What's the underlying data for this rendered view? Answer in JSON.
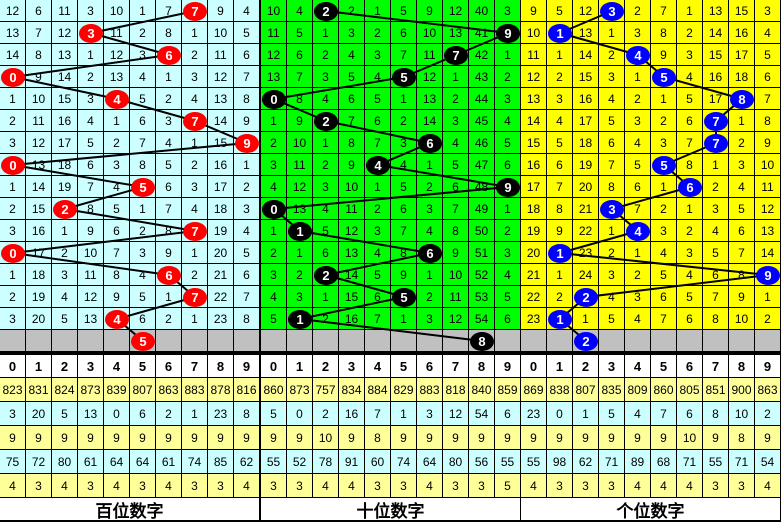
{
  "colors": {
    "hundreds_bg": "#ccffff",
    "tens_bg": "#00ff00",
    "units_bg": "#ffff00",
    "missing_row_bg": "#c0c0c0",
    "stat_yellow": "#ffff99",
    "stat_cyan": "#ccffff",
    "hundreds_ball": "#ff0000",
    "tens_ball": "#000000",
    "units_ball": "#0000ff"
  },
  "digits": [
    "0",
    "1",
    "2",
    "3",
    "4",
    "5",
    "6",
    "7",
    "8",
    "9"
  ],
  "panels": [
    {
      "label": "百位数字",
      "ball": "red-ball",
      "rows": [
        [
          12,
          6,
          11,
          3,
          10,
          1,
          7,
          7,
          9,
          4
        ],
        [
          13,
          7,
          12,
          3,
          11,
          2,
          8,
          1,
          10,
          5
        ],
        [
          14,
          8,
          13,
          1,
          12,
          3,
          6,
          2,
          11,
          6
        ],
        [
          0,
          9,
          14,
          2,
          13,
          4,
          1,
          3,
          12,
          7
        ],
        [
          1,
          10,
          15,
          3,
          4,
          5,
          2,
          4,
          13,
          8
        ],
        [
          2,
          11,
          16,
          4,
          1,
          6,
          3,
          7,
          14,
          9
        ],
        [
          3,
          12,
          17,
          5,
          2,
          7,
          4,
          1,
          15,
          9
        ],
        [
          0,
          13,
          18,
          6,
          3,
          8,
          5,
          2,
          16,
          1
        ],
        [
          1,
          14,
          19,
          7,
          4,
          5,
          6,
          3,
          17,
          2
        ],
        [
          2,
          15,
          2,
          8,
          5,
          1,
          7,
          4,
          18,
          3
        ],
        [
          3,
          16,
          1,
          9,
          6,
          2,
          8,
          7,
          19,
          4
        ],
        [
          0,
          17,
          2,
          10,
          7,
          3,
          9,
          1,
          20,
          5
        ],
        [
          1,
          18,
          3,
          11,
          8,
          4,
          6,
          2,
          21,
          6
        ],
        [
          2,
          19,
          4,
          12,
          9,
          5,
          1,
          7,
          22,
          7
        ],
        [
          3,
          20,
          5,
          13,
          4,
          6,
          2,
          1,
          23,
          8
        ]
      ],
      "hits": [
        7,
        3,
        6,
        0,
        4,
        7,
        9,
        0,
        5,
        2,
        7,
        0,
        6,
        7,
        4
      ],
      "next_hit": 5,
      "stats": [
        [
          823,
          831,
          824,
          873,
          839,
          807,
          863,
          883,
          878,
          816
        ],
        [
          3,
          20,
          5,
          13,
          0,
          6,
          2,
          1,
          23,
          8
        ],
        [
          9,
          9,
          9,
          9,
          9,
          9,
          9,
          9,
          9,
          9
        ],
        [
          75,
          72,
          80,
          61,
          64,
          64,
          61,
          74,
          85,
          62
        ],
        [
          4,
          3,
          4,
          3,
          4,
          3,
          4,
          3,
          3,
          4
        ]
      ]
    },
    {
      "label": "十位数字",
      "ball": "black-ball",
      "rows": [
        [
          10,
          4,
          2,
          2,
          1,
          5,
          9,
          12,
          40,
          3
        ],
        [
          11,
          5,
          1,
          3,
          2,
          6,
          10,
          13,
          41,
          9
        ],
        [
          12,
          6,
          2,
          4,
          3,
          7,
          11,
          7,
          42,
          1
        ],
        [
          13,
          7,
          3,
          5,
          4,
          5,
          12,
          1,
          43,
          2
        ],
        [
          0,
          8,
          4,
          6,
          5,
          1,
          13,
          2,
          44,
          3
        ],
        [
          1,
          9,
          2,
          7,
          6,
          2,
          14,
          3,
          45,
          4
        ],
        [
          2,
          10,
          1,
          8,
          7,
          3,
          6,
          4,
          46,
          5
        ],
        [
          3,
          11,
          2,
          9,
          4,
          4,
          1,
          5,
          47,
          6
        ],
        [
          4,
          12,
          3,
          10,
          1,
          5,
          2,
          6,
          48,
          9
        ],
        [
          0,
          13,
          4,
          11,
          2,
          6,
          3,
          7,
          49,
          1
        ],
        [
          1,
          1,
          5,
          12,
          3,
          7,
          4,
          8,
          50,
          2
        ],
        [
          2,
          1,
          6,
          13,
          4,
          8,
          6,
          9,
          51,
          3
        ],
        [
          3,
          2,
          2,
          14,
          5,
          9,
          1,
          10,
          52,
          4
        ],
        [
          4,
          3,
          1,
          15,
          6,
          5,
          2,
          11,
          53,
          5
        ],
        [
          5,
          1,
          2,
          16,
          7,
          1,
          3,
          12,
          54,
          6
        ]
      ],
      "hits": [
        2,
        9,
        7,
        5,
        0,
        2,
        6,
        4,
        9,
        0,
        1,
        6,
        2,
        5,
        1
      ],
      "next_hit": 8,
      "stats": [
        [
          860,
          873,
          757,
          834,
          884,
          829,
          883,
          818,
          840,
          859
        ],
        [
          5,
          0,
          2,
          16,
          7,
          1,
          3,
          12,
          54,
          6
        ],
        [
          9,
          9,
          10,
          9,
          8,
          9,
          9,
          9,
          9,
          9
        ],
        [
          55,
          52,
          78,
          91,
          60,
          74,
          64,
          80,
          56,
          55
        ],
        [
          3,
          3,
          4,
          4,
          3,
          3,
          4,
          3,
          3,
          5
        ]
      ]
    },
    {
      "label": "个位数字",
      "ball": "blue-ball",
      "rows": [
        [
          9,
          5,
          12,
          3,
          2,
          7,
          1,
          13,
          15,
          3
        ],
        [
          10,
          1,
          13,
          1,
          3,
          8,
          2,
          14,
          16,
          4
        ],
        [
          11,
          1,
          14,
          2,
          4,
          9,
          3,
          15,
          17,
          5
        ],
        [
          12,
          2,
          15,
          3,
          1,
          5,
          4,
          16,
          18,
          6
        ],
        [
          13,
          3,
          16,
          4,
          2,
          1,
          5,
          17,
          8,
          7
        ],
        [
          14,
          4,
          17,
          5,
          3,
          2,
          6,
          7,
          1,
          8
        ],
        [
          15,
          5,
          18,
          6,
          4,
          3,
          7,
          7,
          2,
          9
        ],
        [
          16,
          6,
          19,
          7,
          5,
          5,
          8,
          1,
          3,
          10
        ],
        [
          17,
          7,
          20,
          8,
          6,
          1,
          6,
          2,
          4,
          11
        ],
        [
          18,
          8,
          21,
          3,
          7,
          2,
          1,
          3,
          5,
          12
        ],
        [
          19,
          9,
          22,
          1,
          4,
          3,
          2,
          4,
          6,
          13
        ],
        [
          20,
          1,
          23,
          2,
          1,
          4,
          3,
          5,
          7,
          14
        ],
        [
          21,
          1,
          24,
          3,
          2,
          5,
          4,
          6,
          8,
          9
        ],
        [
          22,
          2,
          2,
          4,
          3,
          6,
          5,
          7,
          9,
          1
        ],
        [
          23,
          1,
          1,
          5,
          4,
          7,
          6,
          8,
          10,
          2
        ]
      ],
      "hits": [
        3,
        1,
        4,
        5,
        8,
        7,
        7,
        5,
        6,
        3,
        4,
        1,
        9,
        2,
        1
      ],
      "next_hit": 2,
      "stats": [
        [
          869,
          838,
          807,
          835,
          809,
          860,
          805,
          851,
          900,
          863
        ],
        [
          23,
          0,
          1,
          5,
          4,
          7,
          6,
          8,
          10,
          2
        ],
        [
          9,
          9,
          9,
          9,
          9,
          9,
          10,
          9,
          8,
          9
        ],
        [
          55,
          98,
          62,
          71,
          89,
          68,
          71,
          55,
          71,
          54
        ],
        [
          4,
          3,
          3,
          3,
          4,
          4,
          4,
          3,
          3,
          4
        ]
      ]
    }
  ]
}
